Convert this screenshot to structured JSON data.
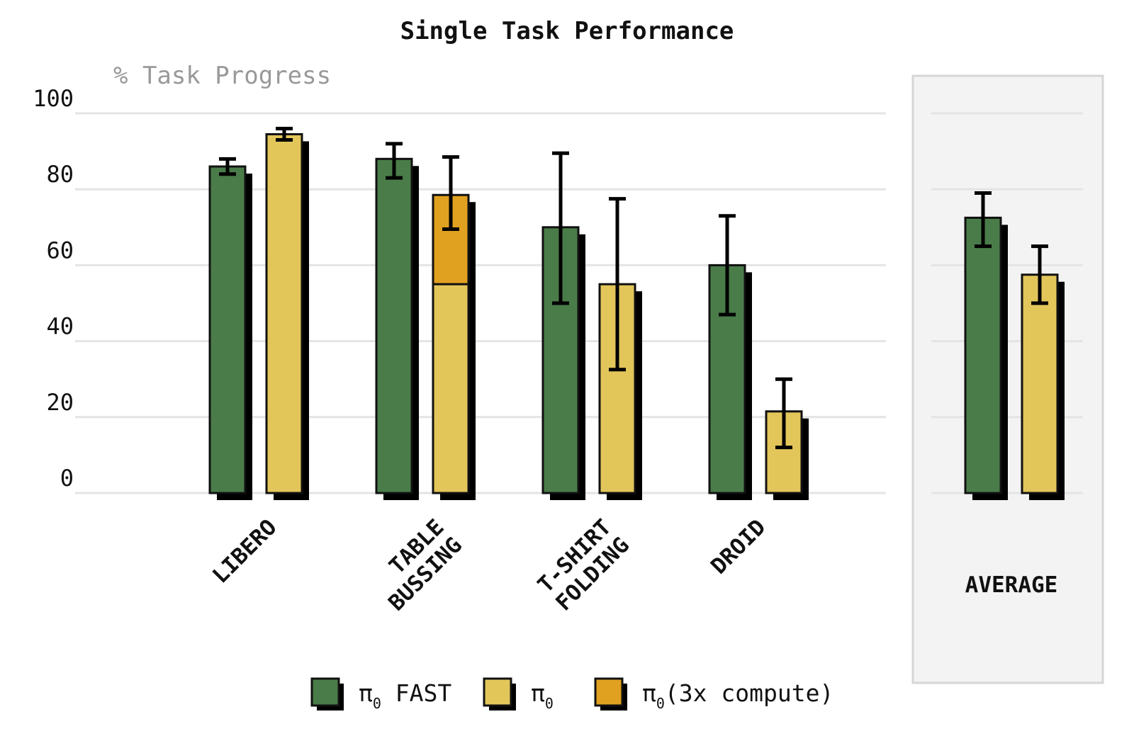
{
  "chart_data": {
    "type": "bar",
    "title": "Single Task Performance",
    "ylabel": "% Task Progress",
    "xlabel": "",
    "ylim": [
      0,
      100
    ],
    "yticks": [
      0,
      20,
      40,
      60,
      80,
      100
    ],
    "grid": true,
    "legend_position": "bottom",
    "categories": [
      "LIBERO",
      "TABLE\nBUSSING",
      "T-SHIRT\nFOLDING",
      "DROID",
      "AVERAGE"
    ],
    "series": [
      {
        "name": "π₀ FAST",
        "legend_main": "π",
        "legend_sub": "0",
        "legend_suffix": " FAST",
        "color": "#4a7c4a",
        "values": [
          86,
          88,
          70,
          60,
          72.5
        ],
        "err_low": [
          84,
          83,
          50,
          47,
          65
        ],
        "err_high": [
          88,
          92,
          89.5,
          73,
          79
        ]
      },
      {
        "name": "π₀",
        "legend_main": "π",
        "legend_sub": "0",
        "legend_suffix": "",
        "color": "#e3c65a",
        "values": [
          94.5,
          55,
          55,
          21.5,
          57.5
        ],
        "err_low": [
          93,
          null,
          32.5,
          12,
          50
        ],
        "err_high": [
          96,
          null,
          77.5,
          30,
          65
        ]
      },
      {
        "name": "π₀ (3x compute)",
        "legend_main": "π",
        "legend_sub": "0",
        "legend_suffix": "(3x compute)",
        "color": "#e0a020",
        "stacked_on": "π₀",
        "values": [
          null,
          78.5,
          null,
          null,
          null
        ],
        "err_low": [
          null,
          69.5,
          null,
          null,
          null
        ],
        "err_high": [
          null,
          88.5,
          null,
          null,
          null
        ]
      }
    ],
    "highlight_category": "AVERAGE"
  }
}
